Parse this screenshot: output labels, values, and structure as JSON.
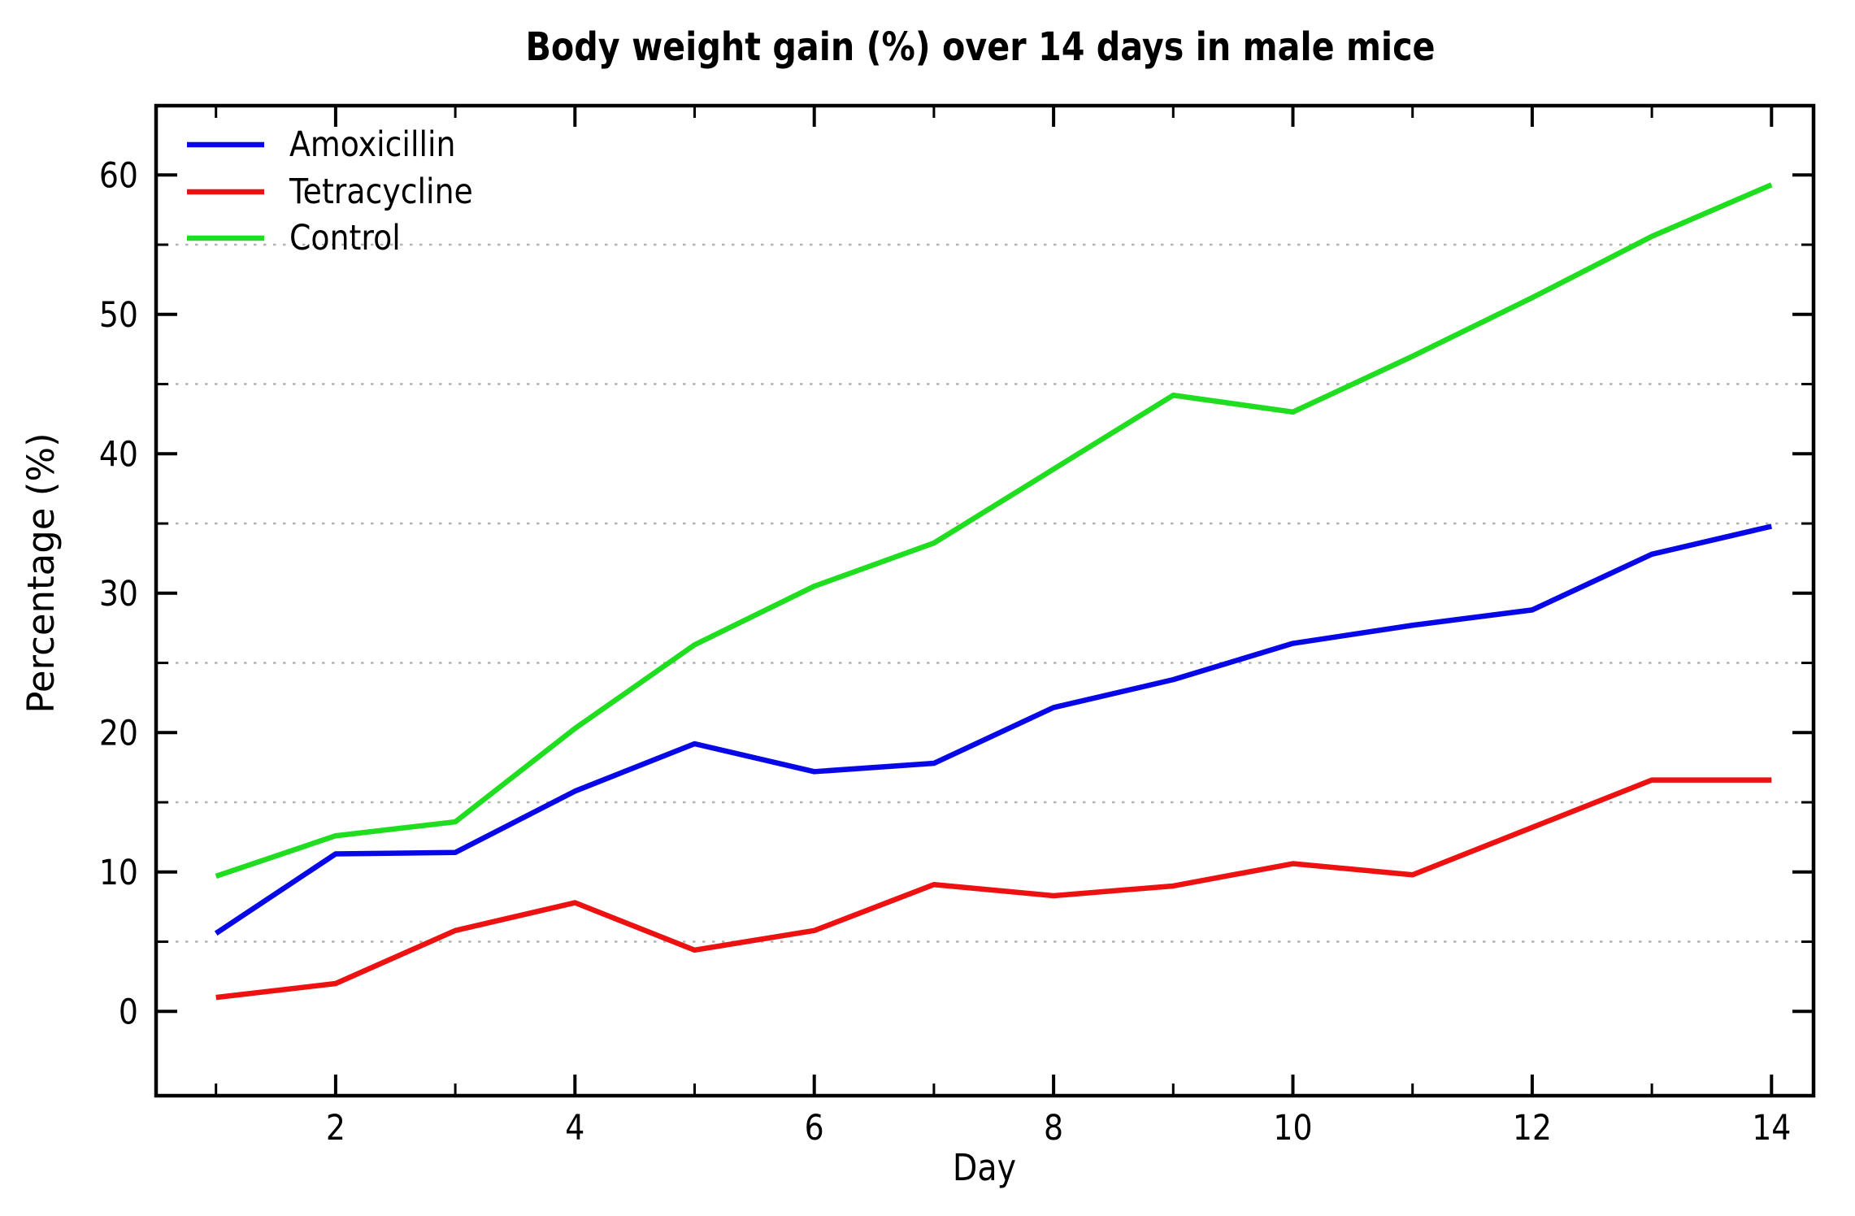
{
  "title": "Body weight gain (%) over 14 days in male mice",
  "axes": {
    "xlabel": "Day",
    "ylabel": "Percentage (%)",
    "x_tick_labels": [
      "2",
      "4",
      "6",
      "8",
      "10",
      "12",
      "14"
    ],
    "y_tick_labels": [
      "0",
      "10",
      "20",
      "30",
      "40",
      "50",
      "60"
    ]
  },
  "legend": {
    "position": "upper left",
    "items": [
      {
        "label": "Amoxicillin",
        "color": "#0707e8"
      },
      {
        "label": "Tetracycline",
        "color": "#ee1111"
      },
      {
        "label": "Control",
        "color": "#1fdd1f"
      }
    ]
  },
  "chart_data": {
    "type": "line",
    "title": "Body weight gain (%) over 14 days in male mice",
    "xlabel": "Day",
    "ylabel": "Percentage (%)",
    "x": [
      1,
      2,
      3,
      4,
      5,
      6,
      7,
      8,
      9,
      10,
      11,
      12,
      13,
      14
    ],
    "series": [
      {
        "name": "Amoxicillin",
        "color": "#0707e8",
        "values": [
          5.6,
          11.3,
          11.4,
          15.8,
          19.2,
          17.2,
          17.8,
          21.8,
          23.8,
          26.4,
          27.7,
          28.8,
          32.8,
          34.8
        ]
      },
      {
        "name": "Tetracycline",
        "color": "#ee1111",
        "values": [
          1.0,
          2.0,
          5.8,
          7.8,
          4.4,
          5.8,
          9.1,
          8.3,
          9.0,
          10.6,
          9.8,
          13.2,
          16.6,
          16.6
        ]
      },
      {
        "name": "Control",
        "color": "#1fdd1f",
        "values": [
          9.7,
          12.6,
          13.6,
          20.3,
          26.3,
          30.5,
          33.6,
          38.9,
          44.2,
          43.0,
          47.0,
          51.2,
          55.6,
          59.3
        ]
      }
    ],
    "xlim": [
      0.5,
      14.4
    ],
    "ylim": [
      -6,
      65
    ],
    "x_major_ticks": [
      2,
      4,
      6,
      8,
      10,
      12,
      14
    ],
    "x_minor_ticks": [
      1,
      3,
      5,
      7,
      9,
      11,
      13
    ],
    "y_major_ticks": [
      0,
      10,
      20,
      30,
      40,
      50,
      60
    ],
    "y_minor_ticks": [
      5,
      15,
      25,
      35,
      45,
      55
    ],
    "grid": "horizontal dotted lines at y = 5,15,25,35,45,55",
    "grid_color": "#b3b3b3",
    "legend_position": "upper left",
    "tick_direction": "in",
    "spines": "all four, black"
  }
}
